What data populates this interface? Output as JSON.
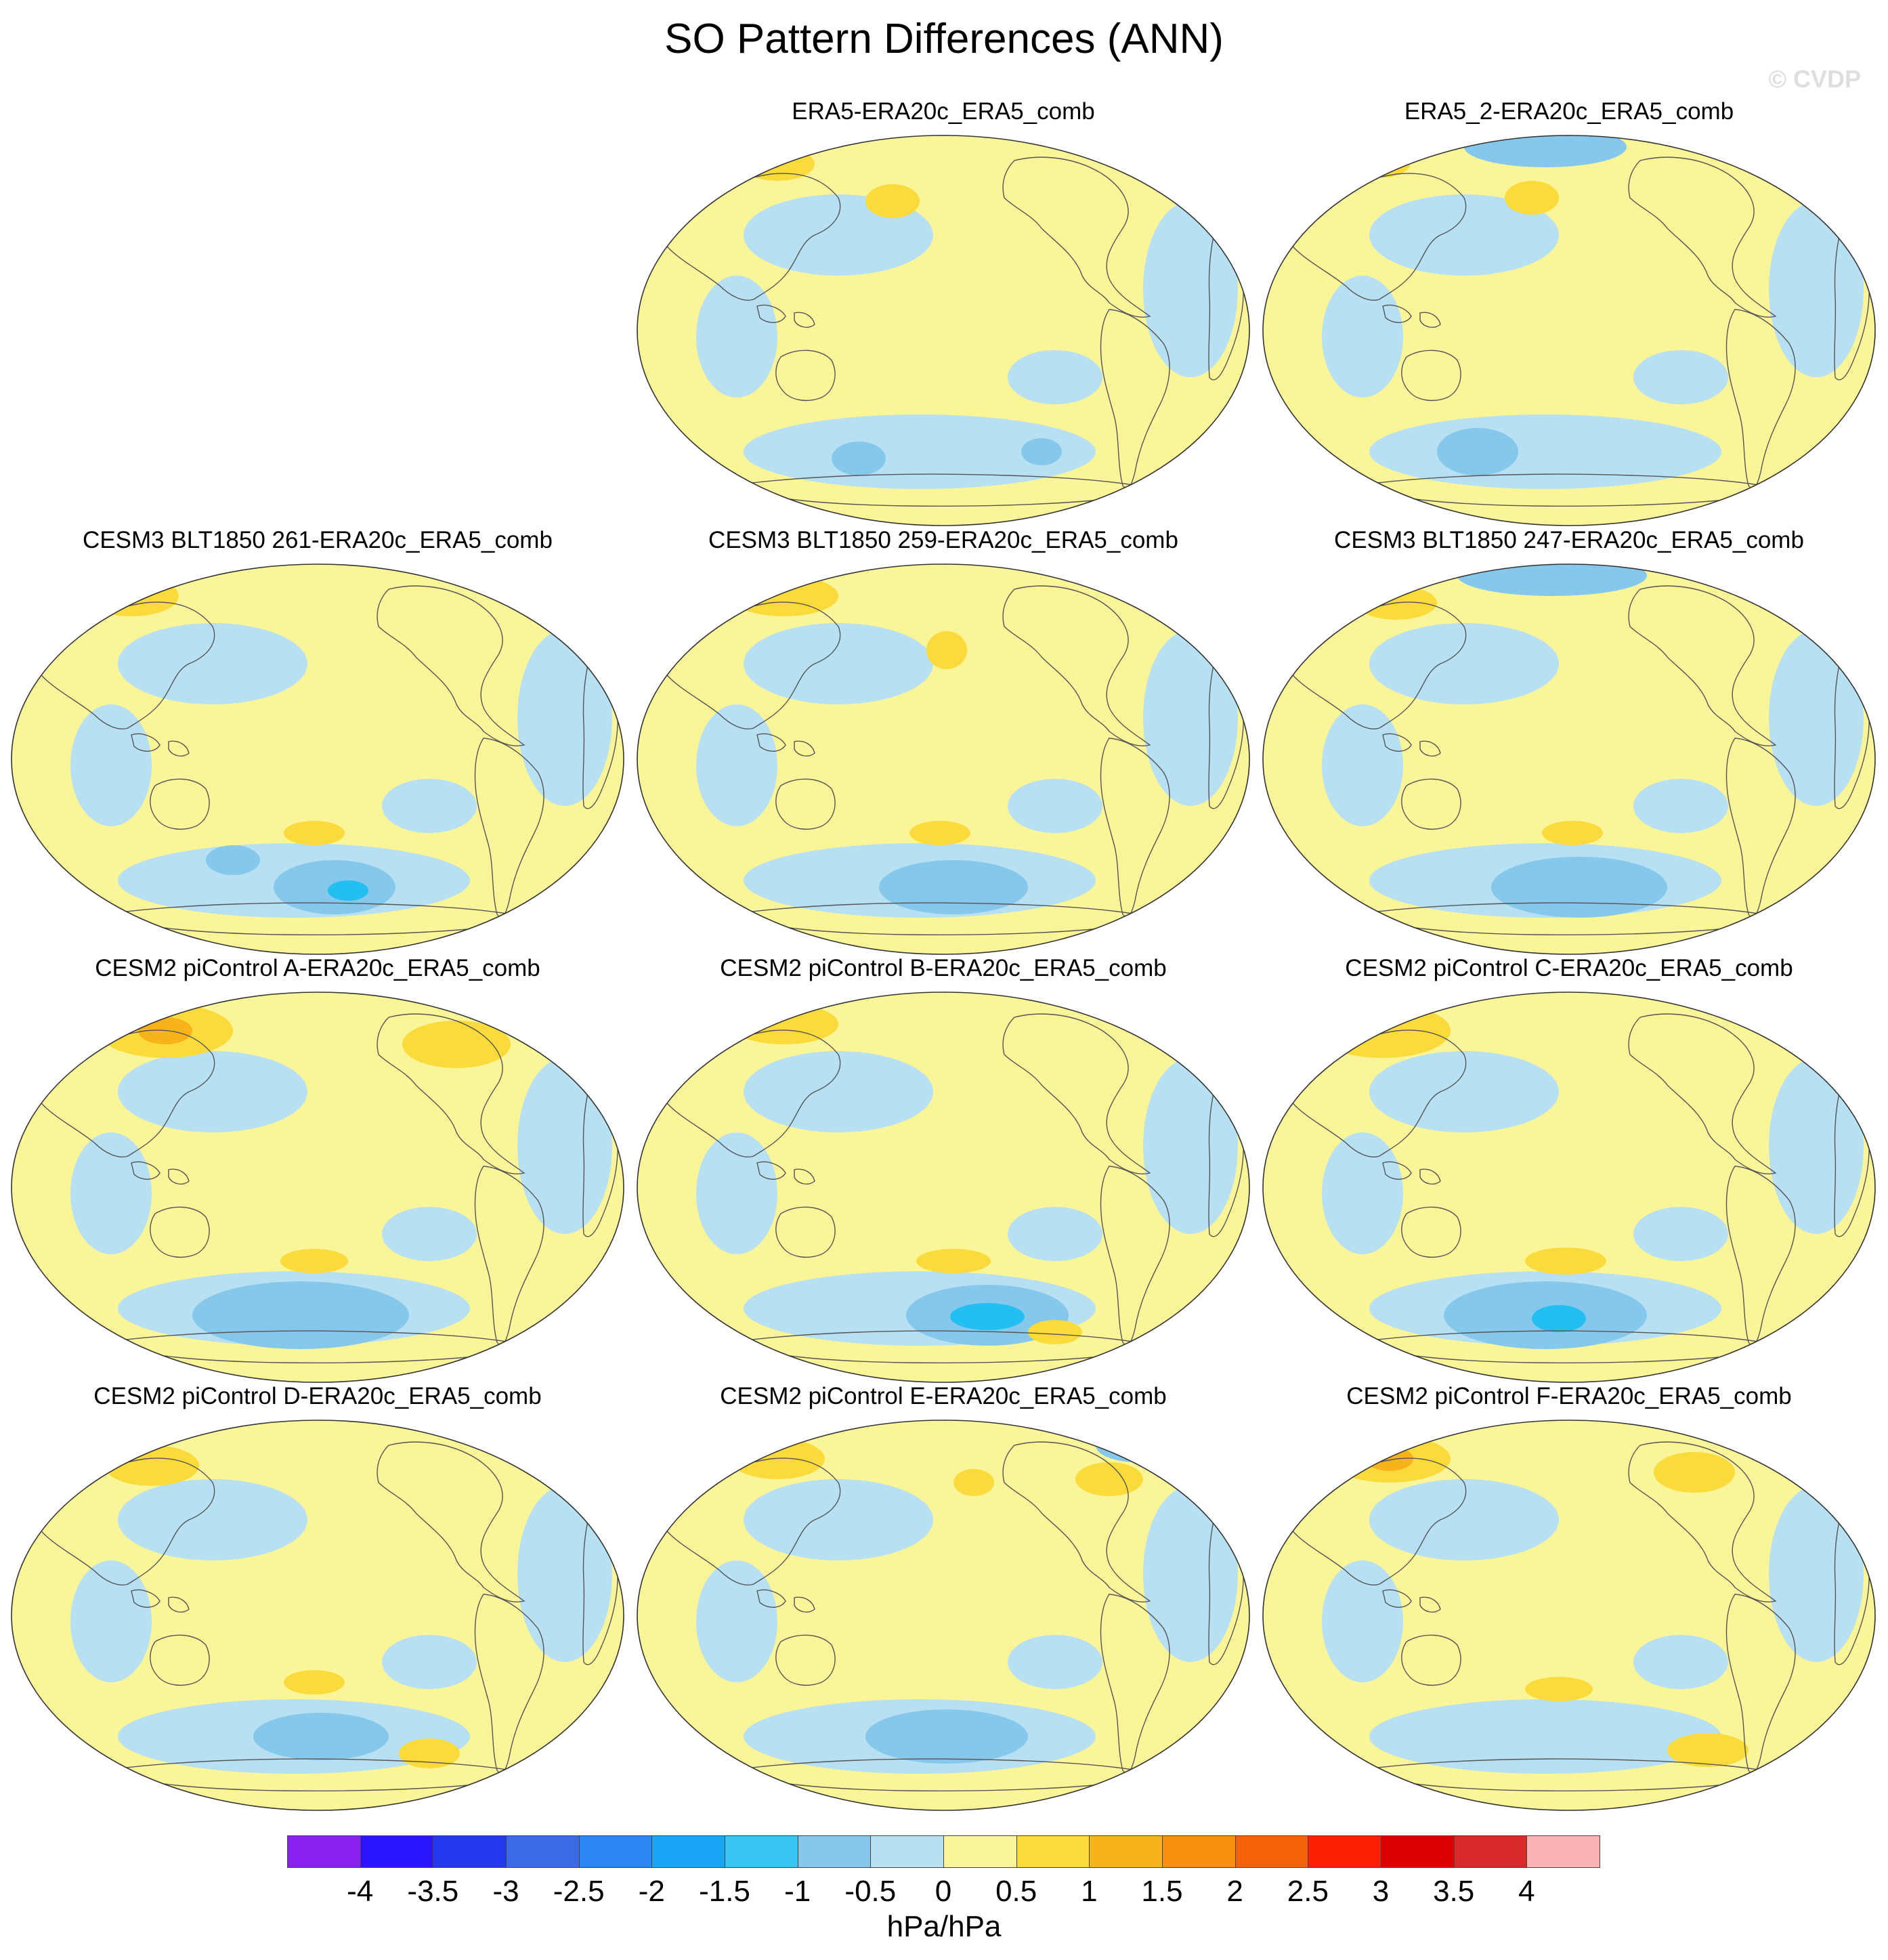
{
  "title": "SO Pattern Differences (ANN)",
  "watermark": "© CVDP",
  "units": "hPa/hPa",
  "colors": {
    "ocean_land_neutral_pos": "#fbf59a",
    "neutral_neg": "#b7e0f2",
    "mid_neg": "#86c7ec",
    "strong_neg": "#22bff0",
    "mid_pos": "#fbda3b",
    "strong_pos": "#f8b21a",
    "coast": "#555555"
  },
  "colorbar": {
    "colors": [
      "#8a1ff0",
      "#2b14ff",
      "#2438f0",
      "#3a6ae6",
      "#2d86f2",
      "#1aa6f7",
      "#36c5f4",
      "#86c7ec",
      "#b7e0f2",
      "#fbf59a",
      "#fbda3b",
      "#f8b21a",
      "#f78f0e",
      "#f56208",
      "#fb1e00",
      "#dd0000",
      "#d92a2a",
      "#fbb4b4"
    ],
    "labels": [
      "-4",
      "-3.5",
      "-3",
      "-2.5",
      "-2",
      "-1.5",
      "-1",
      "-0.5",
      "0",
      "0.5",
      "1",
      "1.5",
      "2",
      "2.5",
      "3",
      "3.5",
      "4"
    ]
  },
  "panels": [
    {
      "title": "ERA5-ERA20c_ERA5_comb"
    },
    {
      "title": "ERA5_2-ERA20c_ERA5_comb"
    },
    {
      "title": "CESM3 BLT1850 261-ERA20c_ERA5_comb"
    },
    {
      "title": "CESM3 BLT1850 259-ERA20c_ERA5_comb"
    },
    {
      "title": "CESM3 BLT1850 247-ERA20c_ERA5_comb"
    },
    {
      "title": "CESM2 piControl A-ERA20c_ERA5_comb"
    },
    {
      "title": "CESM2 piControl B-ERA20c_ERA5_comb"
    },
    {
      "title": "CESM2 piControl C-ERA20c_ERA5_comb"
    },
    {
      "title": "CESM2 piControl D-ERA20c_ERA5_comb"
    },
    {
      "title": "CESM2 piControl E-ERA20c_ERA5_comb"
    },
    {
      "title": "CESM2 piControl F-ERA20c_ERA5_comb"
    }
  ]
}
